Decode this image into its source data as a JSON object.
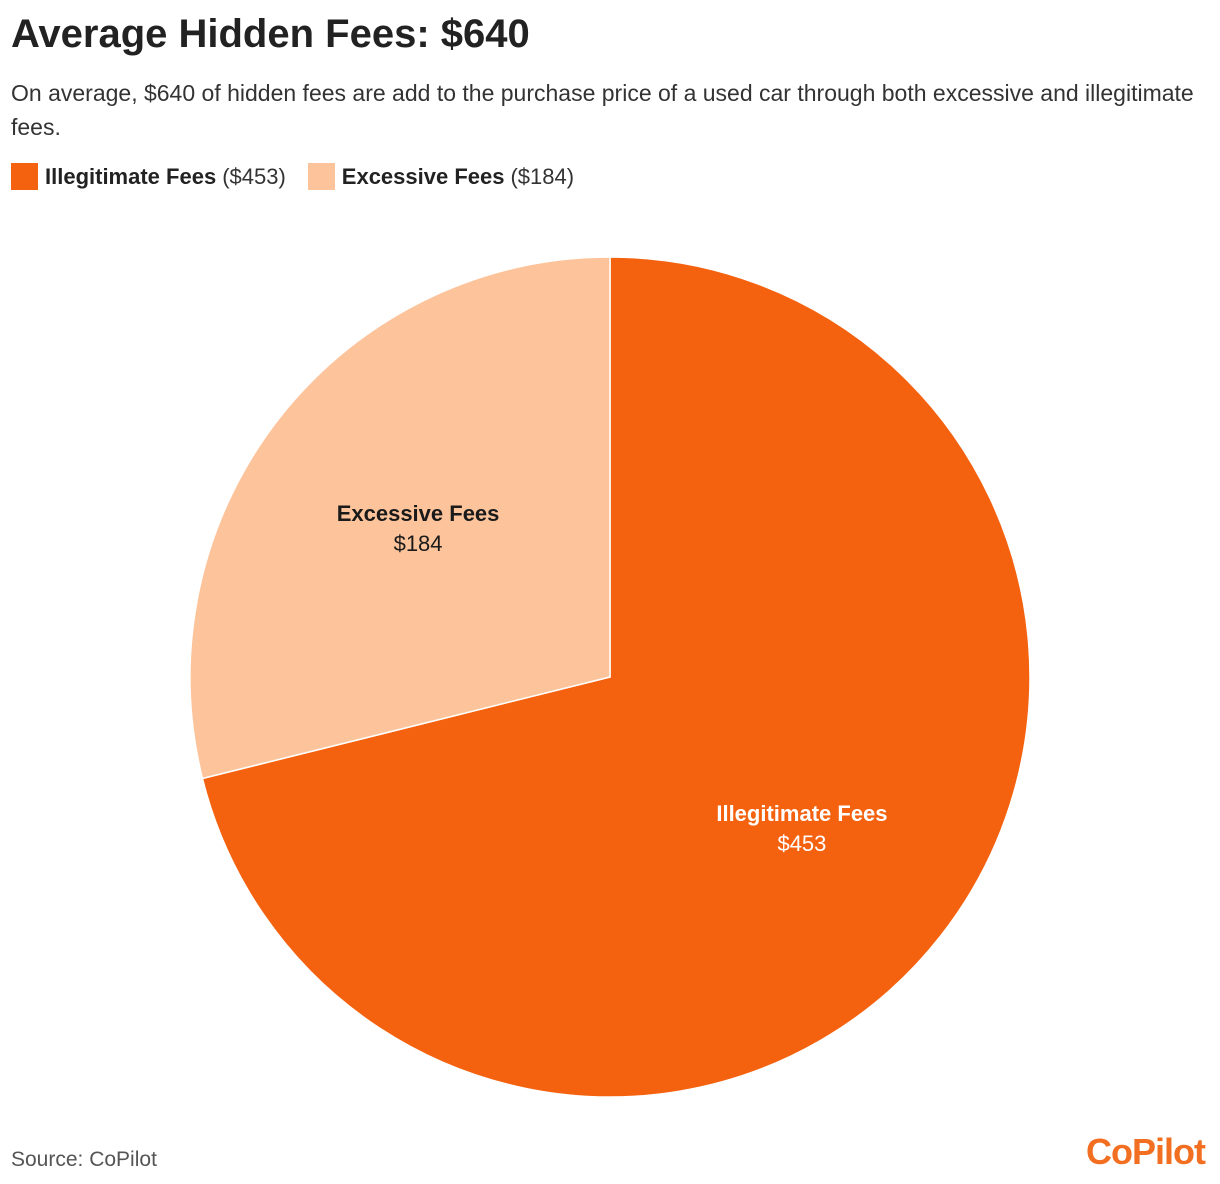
{
  "header": {
    "title": "Average Hidden Fees: $640",
    "subtitle": "On average, $640 of hidden fees are add to the purchase price of a used car through both excessive and illegitimate fees."
  },
  "legend": {
    "placement": "top-left",
    "items": [
      {
        "name": "Illegitimate Fees",
        "value_text": "($453)",
        "color": "#f5620f"
      },
      {
        "name": "Excessive Fees",
        "value_text": "($184)",
        "color": "#fdc49b"
      }
    ]
  },
  "chart_data": {
    "type": "pie",
    "title": "Average Hidden Fees: $640",
    "slices": [
      {
        "name": "Illegitimate Fees",
        "value": 453,
        "label": "$453",
        "color": "#f5620f",
        "label_color": "#ffffff"
      },
      {
        "name": "Excessive Fees",
        "value": 184,
        "label": "$184",
        "color": "#fdc49b",
        "label_color": "#1a1a1a"
      }
    ],
    "start_angle_deg": 0,
    "direction": "clockwise"
  },
  "footer": {
    "source": "Source: CoPilot",
    "logo_text": "CoPilot"
  }
}
